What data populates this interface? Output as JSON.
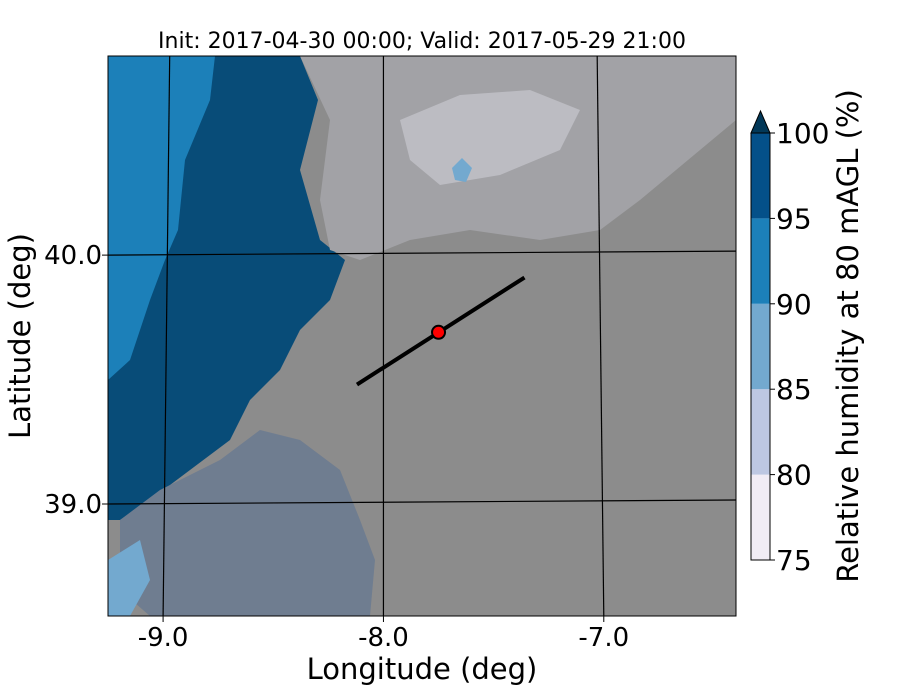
{
  "title": "Init: 2017-04-30 00:00; Valid: 2017-05-29 21:00",
  "xaxis": {
    "label": "Longitude (deg)",
    "range": [
      -9.25,
      -6.4
    ],
    "ticks": [
      -9.0,
      -8.0,
      -7.0
    ],
    "tick_labels": [
      "-9.0",
      "-8.0",
      "-7.0"
    ]
  },
  "yaxis": {
    "label": "Latitude (deg)",
    "range": [
      38.55,
      40.8
    ],
    "ticks": [
      39.0,
      40.0
    ],
    "tick_labels": [
      "39.0",
      "40.0"
    ]
  },
  "colorbar": {
    "label": "Relative humidity at 80 mAGL (%)",
    "levels": [
      75,
      80,
      85,
      90,
      95,
      100
    ],
    "level_labels": [
      "75",
      "80",
      "85",
      "90",
      "95",
      "100"
    ],
    "colors": [
      "#f1ecf5",
      "#bdc7e2",
      "#73a9cf",
      "#1c80b9",
      "#045089"
    ],
    "extend": "max",
    "extend_color": "#023858"
  },
  "map_colors": {
    "gray": "#8c8c8c",
    "gray_light": "#a2a2a6",
    "gray_pale": "#bcbcc2",
    "mix": "#6f7d90",
    "blue_dark": "#084c78",
    "blue_mid": "#1c80b9",
    "blue_light": "#73a9cf"
  },
  "cross_section": {
    "start": {
      "lon": -8.12,
      "lat": 39.48
    },
    "end": {
      "lon": -7.36,
      "lat": 39.91
    },
    "color": "#000000"
  },
  "marker": {
    "lon": -7.75,
    "lat": 39.69,
    "color": "#ff0000"
  },
  "graticule": {
    "meridians": [
      {
        "lon": -9.0,
        "lat_top_offset": 0.03
      },
      {
        "lon": -8.0,
        "lat_top_offset": 0.0
      },
      {
        "lon": -7.0,
        "lat_top_offset": -0.03
      }
    ],
    "parallels": [
      39.0,
      40.0
    ]
  }
}
